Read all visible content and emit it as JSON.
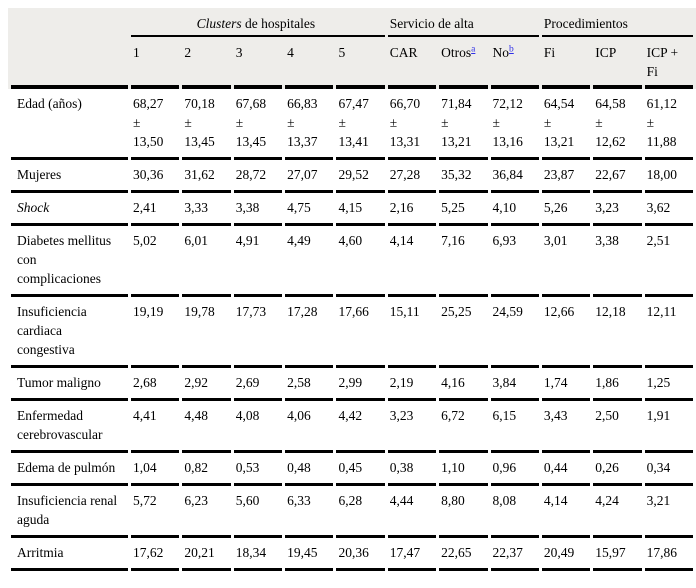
{
  "table": {
    "groups": [
      {
        "italic": "Clusters",
        "text": " de hospitales",
        "span": 5,
        "align": "center"
      },
      {
        "italic": "",
        "text": "Servicio de alta",
        "span": 3,
        "align": "left"
      },
      {
        "italic": "",
        "text": "Procedimientos",
        "span": 3,
        "align": "left"
      }
    ],
    "column_headers": [
      {
        "text": "1"
      },
      {
        "text": "2"
      },
      {
        "text": "3"
      },
      {
        "text": "4"
      },
      {
        "text": "5"
      },
      {
        "text": "CAR"
      },
      {
        "text": "Otros",
        "sup": "a"
      },
      {
        "text": "No",
        "sup": "b"
      },
      {
        "text": "Fi"
      },
      {
        "text": "ICP"
      },
      {
        "text": "ICP + Fi"
      }
    ],
    "rows": [
      {
        "label": "Edad (años)",
        "italic": false,
        "values": [
          "68,27 ± 13,50",
          "70,18 ± 13,45",
          "67,68 ± 13,45",
          "66,83 ± 13,37",
          "67,47 ± 13,41",
          "66,70 ± 13,31",
          "71,84 ± 13,21",
          "72,12 ± 13,16",
          "64,54 ± 13,21",
          "64,58 ± 12,62",
          "61,12 ± 11,88"
        ]
      },
      {
        "label": "Mujeres",
        "italic": false,
        "values": [
          "30,36",
          "31,62",
          "28,72",
          "27,07",
          "29,52",
          "27,28",
          "35,32",
          "36,84",
          "23,87",
          "22,67",
          "18,00"
        ]
      },
      {
        "label": "Shock",
        "italic": true,
        "values": [
          "2,41",
          "3,33",
          "3,38",
          "4,75",
          "4,15",
          "2,16",
          "5,25",
          "4,10",
          "5,26",
          "3,23",
          "3,62"
        ]
      },
      {
        "label": "Diabetes mellitus con complicaciones",
        "italic": false,
        "values": [
          "5,02",
          "6,01",
          "4,91",
          "4,49",
          "4,60",
          "4,14",
          "7,16",
          "6,93",
          "3,01",
          "3,38",
          "2,51"
        ]
      },
      {
        "label": "Insuficiencia cardiaca congestiva",
        "italic": false,
        "values": [
          "19,19",
          "19,78",
          "17,73",
          "17,28",
          "17,66",
          "15,11",
          "25,25",
          "24,59",
          "12,66",
          "12,18",
          "12,11"
        ]
      },
      {
        "label": "Tumor maligno",
        "italic": false,
        "values": [
          "2,68",
          "2,92",
          "2,69",
          "2,58",
          "2,99",
          "2,19",
          "4,16",
          "3,84",
          "1,74",
          "1,86",
          "1,25"
        ]
      },
      {
        "label": "Enfermedad cerebrovascular",
        "italic": false,
        "values": [
          "4,41",
          "4,48",
          "4,08",
          "4,06",
          "4,42",
          "3,23",
          "6,72",
          "6,15",
          "3,43",
          "2,50",
          "1,91"
        ]
      },
      {
        "label": "Edema de pulmón",
        "italic": false,
        "values": [
          "1,04",
          "0,82",
          "0,53",
          "0,48",
          "0,45",
          "0,38",
          "1,10",
          "0,96",
          "0,44",
          "0,26",
          "0,34"
        ]
      },
      {
        "label": "Insuficiencia renal aguda",
        "italic": false,
        "values": [
          "5,72",
          "6,23",
          "5,60",
          "6,33",
          "6,28",
          "4,44",
          "8,80",
          "8,08",
          "4,14",
          "4,24",
          "3,21"
        ]
      },
      {
        "label": "Arritmia",
        "italic": false,
        "values": [
          "17,62",
          "20,21",
          "18,34",
          "19,45",
          "20,36",
          "17,47",
          "22,65",
          "22,37",
          "20,49",
          "15,97",
          "17,86"
        ]
      }
    ]
  },
  "colors": {
    "header_bg": "#eeedea",
    "border": "#000000",
    "text": "#000000",
    "link": "#2f2fe8"
  }
}
